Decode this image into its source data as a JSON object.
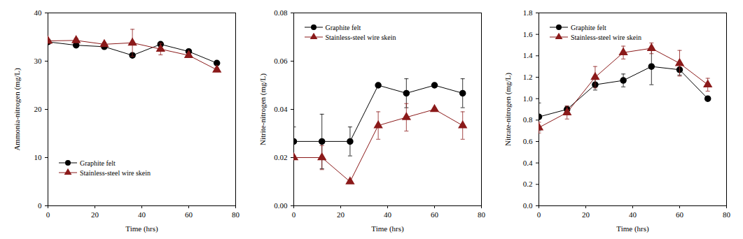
{
  "chart_data": [
    {
      "type": "line",
      "x_label": "Time (hrs)",
      "y_label": "Ammonia-nitrogen (mg/L)",
      "xlim": [
        0,
        80
      ],
      "xticks": [
        0,
        20,
        40,
        60,
        80
      ],
      "ylim": [
        0,
        40
      ],
      "yticks": [
        0,
        10,
        20,
        30,
        40
      ],
      "legend": "lower left",
      "x": [
        0,
        12,
        24,
        36,
        48,
        60,
        72
      ],
      "series": [
        {
          "name": "Graphite felt",
          "color": "#000000",
          "marker": "circle",
          "values": [
            34.0,
            33.3,
            33.0,
            31.2,
            33.5,
            32.0,
            29.6
          ],
          "errors": [
            0.5,
            0.4,
            0.4,
            0.4,
            0.4,
            0.4,
            0.4
          ]
        },
        {
          "name": "Stainless-steel wire skein",
          "color": "#8b1a1a",
          "marker": "triangle",
          "values": [
            34.2,
            34.3,
            33.5,
            33.8,
            32.5,
            31.2,
            28.2
          ],
          "errors": [
            0.4,
            0.4,
            0.4,
            2.8,
            1.2,
            0.4,
            0.4
          ]
        }
      ]
    },
    {
      "type": "line",
      "x_label": "Time (hrs)",
      "y_label": "Nitrite-nitrogen (mg/L)",
      "xlim": [
        0,
        80
      ],
      "xticks": [
        0,
        20,
        40,
        60,
        80
      ],
      "ylim": [
        0,
        0.08
      ],
      "yticks": [
        {
          "value": 0,
          "label": "0.00"
        },
        {
          "value": 0.02,
          "label": "0.02"
        },
        {
          "value": 0.04,
          "label": "0.04"
        },
        {
          "value": 0.06,
          "label": "0.06"
        },
        {
          "value": 0.08,
          "label": "0.08"
        }
      ],
      "legend": "upper left",
      "x": [
        0,
        12,
        24,
        36,
        48,
        60,
        72
      ],
      "series": [
        {
          "name": "Graphite felt",
          "color": "#000000",
          "marker": "circle",
          "values": [
            0.0267,
            0.0267,
            0.0267,
            0.05,
            0.0467,
            0.05,
            0.0467
          ],
          "errors": [
            0.006,
            0.0113,
            0.006,
            0,
            0.006,
            0,
            0.006
          ]
        },
        {
          "name": "Stainless-steel wire skein",
          "color": "#8b1a1a",
          "marker": "triangle",
          "values": [
            0.02,
            0.02,
            0.01,
            0.0333,
            0.0367,
            0.04,
            0.0333
          ],
          "errors": [
            0,
            0.005,
            0,
            0.0057,
            0.0057,
            0,
            0.0057
          ]
        }
      ]
    },
    {
      "type": "line",
      "x_label": "Time (hrs)",
      "y_label": "Nitrate-nitrogen (mg/L)",
      "xlim": [
        0,
        80
      ],
      "xticks": [
        0,
        20,
        40,
        60,
        80
      ],
      "ylim": [
        0,
        1.8
      ],
      "yticks": [
        {
          "value": 0,
          "label": "0.0"
        },
        {
          "value": 0.2,
          "label": "0.2"
        },
        {
          "value": 0.4,
          "label": "0.4"
        },
        {
          "value": 0.6,
          "label": "0.6"
        },
        {
          "value": 0.8,
          "label": "0.8"
        },
        {
          "value": 1.0,
          "label": "1.0"
        },
        {
          "value": 1.2,
          "label": "1.2"
        },
        {
          "value": 1.4,
          "label": "1.4"
        },
        {
          "value": 1.6,
          "label": "1.6"
        },
        {
          "value": 1.8,
          "label": "1.8"
        }
      ],
      "legend": "upper left",
      "x": [
        0,
        12,
        24,
        36,
        48,
        60,
        72
      ],
      "series": [
        {
          "name": "Graphite felt",
          "color": "#000000",
          "marker": "circle",
          "values": [
            0.83,
            0.9,
            1.13,
            1.17,
            1.3,
            1.27,
            1.0
          ],
          "errors": [
            0.13,
            0.03,
            0.05,
            0.06,
            0.17,
            0.05,
            0
          ]
        },
        {
          "name": "Stainless-steel wire skein",
          "color": "#8b1a1a",
          "marker": "triangle",
          "values": [
            0.73,
            0.87,
            1.2,
            1.43,
            1.47,
            1.33,
            1.13
          ],
          "errors": [
            0.05,
            0.06,
            0.1,
            0.06,
            0.05,
            0.12,
            0.06
          ]
        }
      ]
    }
  ]
}
